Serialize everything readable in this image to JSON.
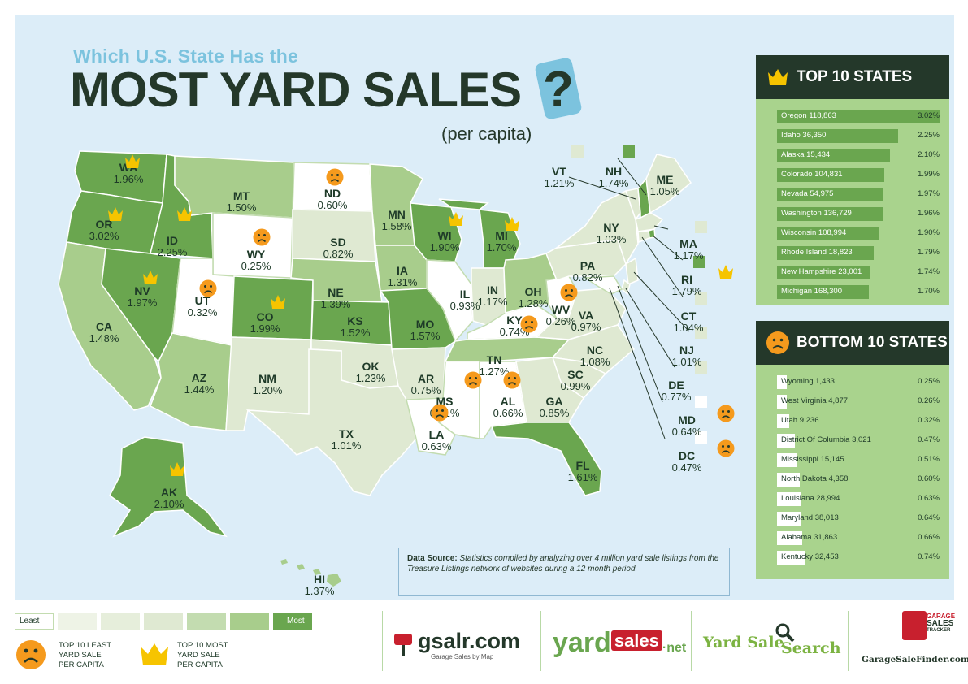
{
  "title": {
    "line1": "Which U.S. State Has the",
    "line2": "MOST YARD SALES",
    "qmark": "?",
    "subtitle": "(per capita)"
  },
  "colors": {
    "background": "#dcedf8",
    "dark": "#24382a",
    "accent_blue": "#7cc3de",
    "crown": "#f6c400",
    "frown": "#f59a1d",
    "scale": [
      "#ffffff",
      "#eef3e6",
      "#dfe9d2",
      "#c3dcb0",
      "#a8cd8c",
      "#6aa64f"
    ]
  },
  "chart_data": {
    "type": "choropleth-map",
    "metric": "percent",
    "states": [
      {
        "abbr": "WA",
        "pct": "1.96%"
      },
      {
        "abbr": "OR",
        "pct": "3.02%"
      },
      {
        "abbr": "CA",
        "pct": "1.48%"
      },
      {
        "abbr": "ID",
        "pct": "2.25%"
      },
      {
        "abbr": "NV",
        "pct": "1.97%"
      },
      {
        "abbr": "MT",
        "pct": "1.50%"
      },
      {
        "abbr": "WY",
        "pct": "0.25%"
      },
      {
        "abbr": "UT",
        "pct": "0.32%"
      },
      {
        "abbr": "AZ",
        "pct": "1.44%"
      },
      {
        "abbr": "CO",
        "pct": "1.99%"
      },
      {
        "abbr": "NM",
        "pct": "1.20%"
      },
      {
        "abbr": "ND",
        "pct": "0.60%"
      },
      {
        "abbr": "SD",
        "pct": "0.82%"
      },
      {
        "abbr": "NE",
        "pct": "1.39%"
      },
      {
        "abbr": "KS",
        "pct": "1.52%"
      },
      {
        "abbr": "OK",
        "pct": "1.23%"
      },
      {
        "abbr": "TX",
        "pct": "1.01%"
      },
      {
        "abbr": "MN",
        "pct": "1.58%"
      },
      {
        "abbr": "IA",
        "pct": "1.31%"
      },
      {
        "abbr": "MO",
        "pct": "1.57%"
      },
      {
        "abbr": "AR",
        "pct": "0.75%"
      },
      {
        "abbr": "LA",
        "pct": "0.63%"
      },
      {
        "abbr": "WI",
        "pct": "1.90%"
      },
      {
        "abbr": "IL",
        "pct": "0.93%"
      },
      {
        "abbr": "MS",
        "pct": "0.51%"
      },
      {
        "abbr": "MI",
        "pct": "1.70%"
      },
      {
        "abbr": "IN",
        "pct": "1.17%"
      },
      {
        "abbr": "KY",
        "pct": "0.74%"
      },
      {
        "abbr": "TN",
        "pct": "1.27%"
      },
      {
        "abbr": "AL",
        "pct": "0.66%"
      },
      {
        "abbr": "OH",
        "pct": "1.28%"
      },
      {
        "abbr": "WV",
        "pct": "0.26%"
      },
      {
        "abbr": "VA",
        "pct": "0.97%"
      },
      {
        "abbr": "NC",
        "pct": "1.08%"
      },
      {
        "abbr": "SC",
        "pct": "0.99%"
      },
      {
        "abbr": "GA",
        "pct": "0.85%"
      },
      {
        "abbr": "FL",
        "pct": "1.61%"
      },
      {
        "abbr": "PA",
        "pct": "0.82%"
      },
      {
        "abbr": "NY",
        "pct": "1.03%"
      },
      {
        "abbr": "VT",
        "pct": "1.21%"
      },
      {
        "abbr": "NH",
        "pct": "1.74%"
      },
      {
        "abbr": "ME",
        "pct": "1.05%"
      },
      {
        "abbr": "MA",
        "pct": "1.17%"
      },
      {
        "abbr": "RI",
        "pct": "1.79%"
      },
      {
        "abbr": "CT",
        "pct": "1.04%"
      },
      {
        "abbr": "NJ",
        "pct": "1.01%"
      },
      {
        "abbr": "DE",
        "pct": "0.77%"
      },
      {
        "abbr": "MD",
        "pct": "0.64%"
      },
      {
        "abbr": "DC",
        "pct": "0.47%"
      },
      {
        "abbr": "AK",
        "pct": "2.10%"
      },
      {
        "abbr": "HI",
        "pct": "1.37%"
      }
    ],
    "top10": {
      "title": "TOP 10 STATES",
      "rows": [
        {
          "label": "Oregon 118,863",
          "value": 3.02,
          "pct": "3.02%"
        },
        {
          "label": "Idaho 36,350",
          "value": 2.25,
          "pct": "2.25%"
        },
        {
          "label": "Alaska 15,434",
          "value": 2.1,
          "pct": "2.10%"
        },
        {
          "label": "Colorado 104,831",
          "value": 1.99,
          "pct": "1.99%"
        },
        {
          "label": "Nevada 54,975",
          "value": 1.97,
          "pct": "1.97%"
        },
        {
          "label": "Washington 136,729",
          "value": 1.96,
          "pct": "1.96%"
        },
        {
          "label": "Wisconsin 108,994",
          "value": 1.9,
          "pct": "1.90%"
        },
        {
          "label": "Rhode Island 18,823",
          "value": 1.79,
          "pct": "1.79%"
        },
        {
          "label": "New Hampshire 23,001",
          "value": 1.74,
          "pct": "1.74%"
        },
        {
          "label": "Michigan 168,300",
          "value": 1.7,
          "pct": "1.70%"
        }
      ]
    },
    "bottom10": {
      "title": "BOTTOM 10 STATES",
      "rows": [
        {
          "label": "Wyoming 1,433",
          "value": 0.25,
          "pct": "0.25%"
        },
        {
          "label": "West Virginia 4,877",
          "value": 0.26,
          "pct": "0.26%"
        },
        {
          "label": "Utah 9,236",
          "value": 0.32,
          "pct": "0.32%"
        },
        {
          "label": "District Of Columbia 3,021",
          "value": 0.47,
          "pct": "0.47%"
        },
        {
          "label": "Mississippi 15,145",
          "value": 0.51,
          "pct": "0.51%"
        },
        {
          "label": "North Dakota 4,358",
          "value": 0.6,
          "pct": "0.60%"
        },
        {
          "label": "Louisiana 28,994",
          "value": 0.63,
          "pct": "0.63%"
        },
        {
          "label": "Maryland 38,013",
          "value": 0.64,
          "pct": "0.64%"
        },
        {
          "label": "Alabama 31,863",
          "value": 0.66,
          "pct": "0.66%"
        },
        {
          "label": "Kentucky 32,453",
          "value": 0.74,
          "pct": "0.74%"
        }
      ]
    }
  },
  "legend": {
    "least": "Least",
    "most": "Most",
    "least_icon_text": [
      "TOP 10 LEAST",
      "YARD SALE",
      "PER CAPITA"
    ],
    "most_icon_text": [
      "TOP 10 MOST",
      "YARD SALE",
      "PER CAPITA"
    ]
  },
  "source": {
    "label": "Data Source:",
    "text": "Statistics compiled by analyzing over 4 million yard sale listings from the Treasure Listings network of websites during a 12 month period."
  },
  "logos": {
    "gsalr": "gsalr.com",
    "gsalr_tag": "Garage Sales by Map",
    "yardsales_a": "yard",
    "yardsales_b": "sales",
    "yardsales_c": "·net",
    "yss_a": "Yard Sale",
    "yss_b": "Search",
    "garage_tracker_a": "GARAGE",
    "garage_tracker_b": "SALES",
    "garage_tracker_c": "TRACKER",
    "gsf": "GarageSaleFinder.com"
  }
}
